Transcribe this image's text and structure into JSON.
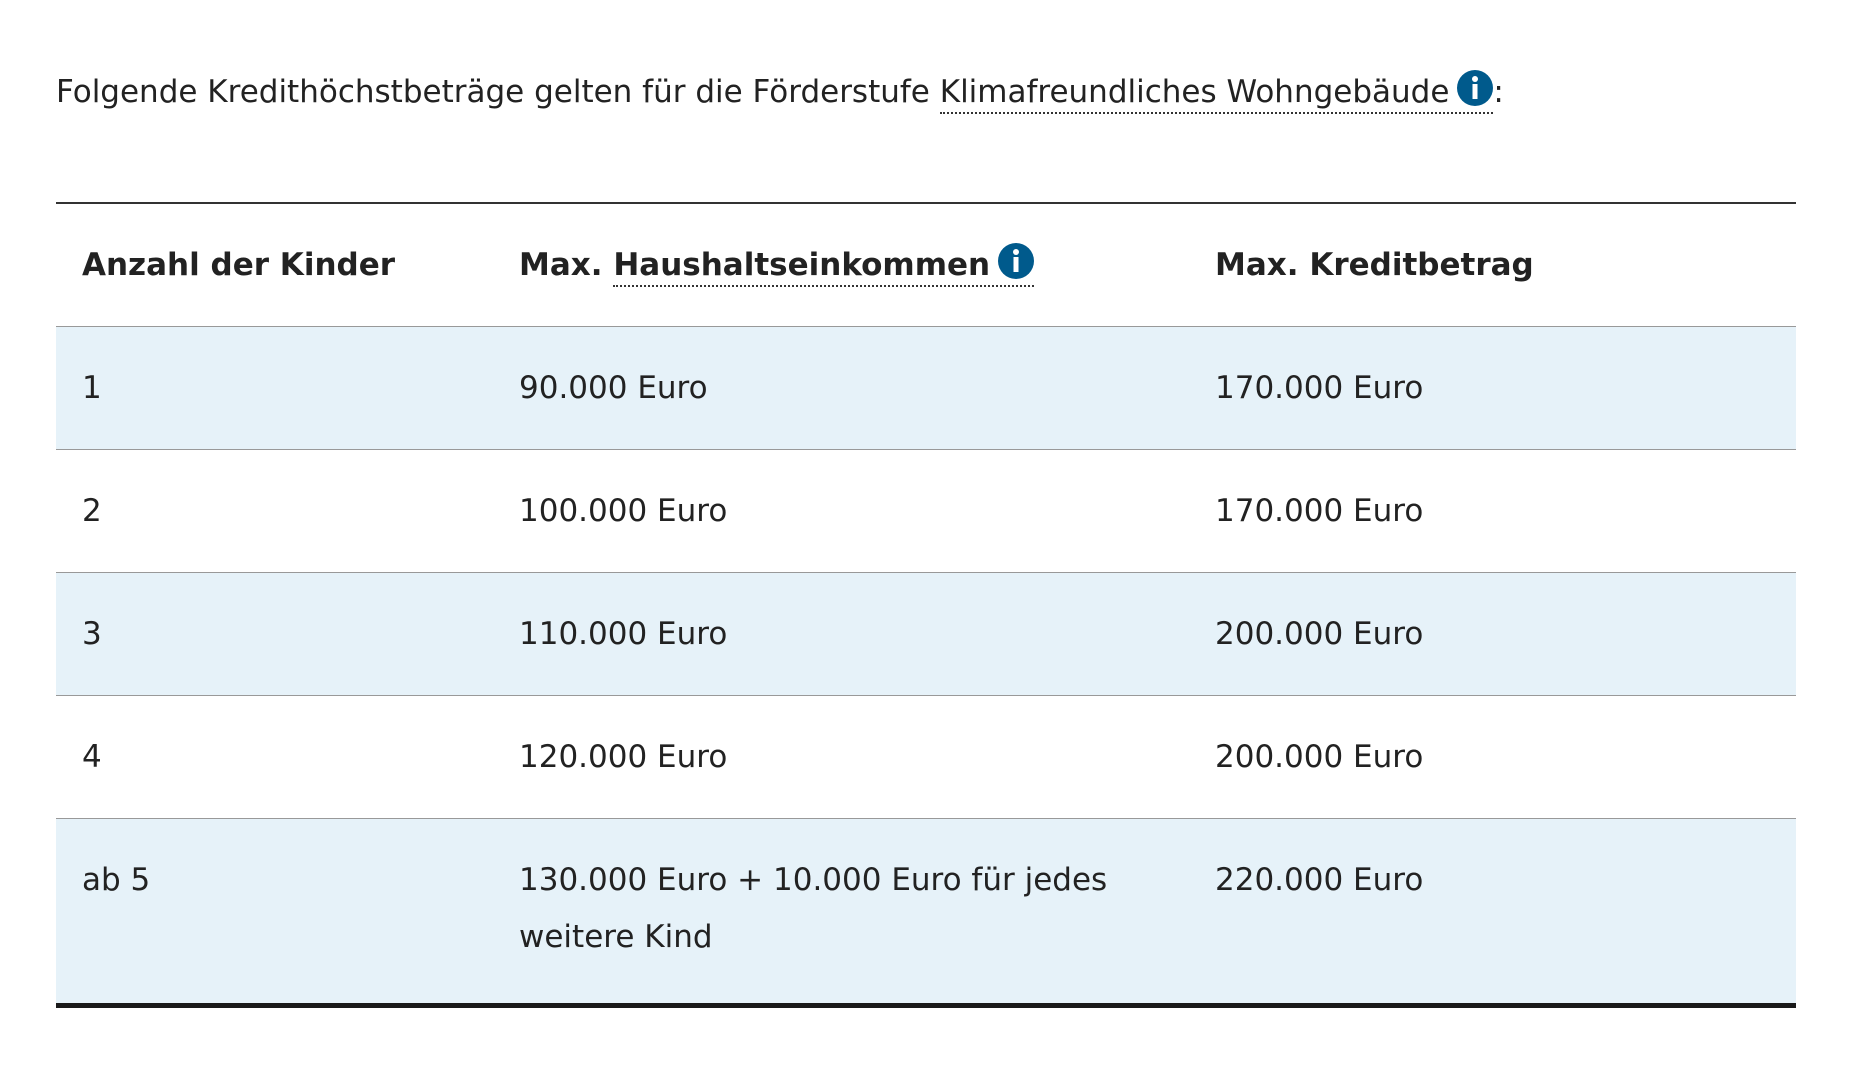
{
  "intro": {
    "text": "Folgende Kredithöchstbeträge gelten für die Förderstufe",
    "link": "Klimafreundliches Wohngebäude",
    "suffix": ":"
  },
  "table": {
    "header": {
      "col1": "Anzahl der Kinder",
      "col2_prefix": "Max.",
      "col2_link": "Haushaltseinkommen",
      "col3": "Max. Kreditbetrag"
    },
    "rows": [
      [
        "1",
        "90.000 Euro",
        "170.000 Euro"
      ],
      [
        "2",
        "100.000 Euro",
        "170.000 Euro"
      ],
      [
        "3",
        "110.000 Euro",
        "200.000 Euro"
      ],
      [
        "4",
        "120.000 Euro",
        "200.000 Euro"
      ],
      [
        "ab 5",
        "130.000 Euro + 10.000 Euro für jedes weitere Kind",
        "220.000 Euro"
      ]
    ]
  }
}
